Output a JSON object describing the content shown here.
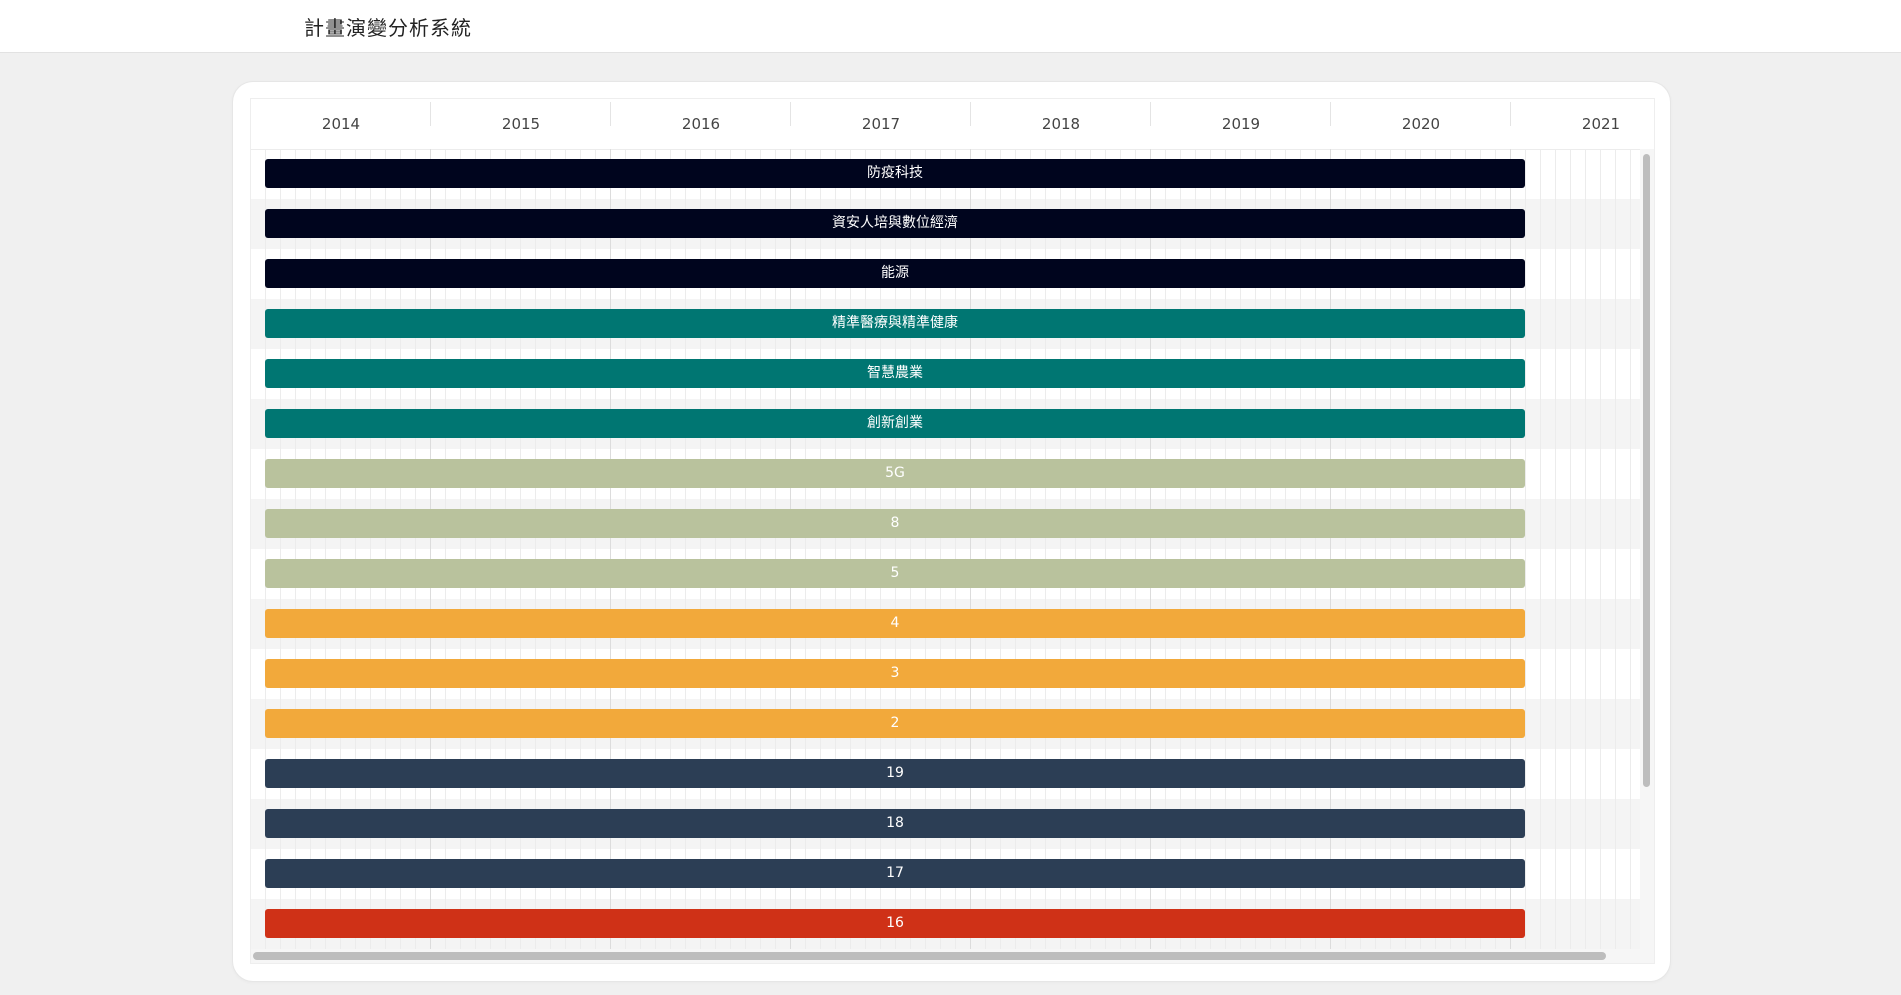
{
  "app": {
    "title": "計畫演變分析系統"
  },
  "timeline": {
    "years": [
      "2014",
      "2015",
      "2016",
      "2017",
      "2018",
      "2019",
      "2020",
      "2021"
    ]
  },
  "colors": {
    "navy": "#00051e",
    "teal": "#007672",
    "sage": "#b9c29d",
    "orange": "#f2a93b",
    "slate": "#2c3e55",
    "red": "#cf3117",
    "row_alt": "#f4f4f4"
  },
  "tasks": [
    {
      "label": "防疫科技",
      "color": "#00051e"
    },
    {
      "label": "資安人培與數位經濟",
      "color": "#00051e"
    },
    {
      "label": "能源",
      "color": "#00051e"
    },
    {
      "label": "精準醫療與精準健康",
      "color": "#007672"
    },
    {
      "label": "智慧農業",
      "color": "#007672"
    },
    {
      "label": "創新創業",
      "color": "#007672"
    },
    {
      "label": "5G",
      "color": "#b9c29d"
    },
    {
      "label": "8",
      "color": "#b9c29d"
    },
    {
      "label": "5",
      "color": "#b9c29d"
    },
    {
      "label": "4",
      "color": "#f2a93b"
    },
    {
      "label": "3",
      "color": "#f2a93b"
    },
    {
      "label": "2",
      "color": "#f2a93b"
    },
    {
      "label": "19",
      "color": "#2c3e55"
    },
    {
      "label": "18",
      "color": "#2c3e55"
    },
    {
      "label": "17",
      "color": "#2c3e55"
    },
    {
      "label": "16",
      "color": "#cf3117"
    }
  ]
}
